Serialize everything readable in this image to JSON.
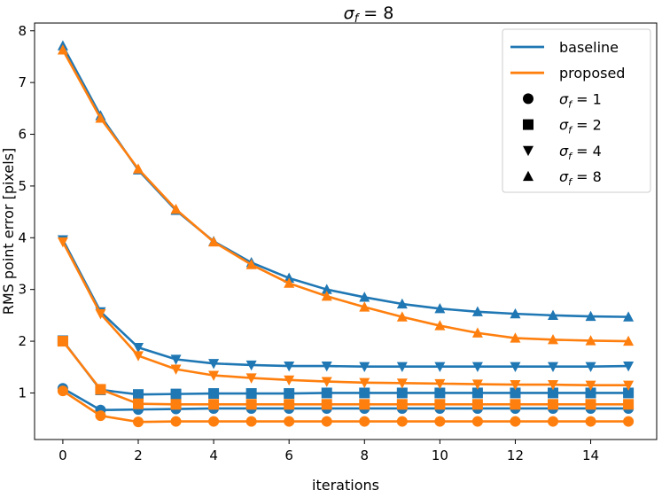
{
  "chart_data": {
    "type": "line",
    "title": "σ_f = 8",
    "xlabel": "iterations",
    "ylabel": "RMS point error [pixels]",
    "xlim": [
      -0.75,
      15.75
    ],
    "ylim": [
      0.1,
      8.15
    ],
    "xticks": [
      0,
      2,
      4,
      6,
      8,
      10,
      12,
      14
    ],
    "yticks": [
      1,
      2,
      3,
      4,
      5,
      6,
      7,
      8
    ],
    "x": [
      0,
      1,
      2,
      3,
      4,
      5,
      6,
      7,
      8,
      9,
      10,
      11,
      12,
      13,
      14,
      15
    ],
    "colors": {
      "baseline": "#1f77b4",
      "proposed": "#ff7f0e",
      "legend_marker": "#000000"
    },
    "series": [
      {
        "name": "baseline, σ_f = 1",
        "method": "baseline",
        "marker": "circle",
        "values": [
          1.09,
          0.67,
          0.68,
          0.69,
          0.7,
          0.7,
          0.7,
          0.7,
          0.7,
          0.7,
          0.7,
          0.7,
          0.7,
          0.7,
          0.7,
          0.7
        ]
      },
      {
        "name": "proposed, σ_f = 1",
        "method": "proposed",
        "marker": "circle",
        "values": [
          1.04,
          0.56,
          0.44,
          0.45,
          0.45,
          0.45,
          0.45,
          0.45,
          0.45,
          0.45,
          0.45,
          0.45,
          0.45,
          0.45,
          0.45,
          0.45
        ]
      },
      {
        "name": "baseline, σ_f = 2",
        "method": "baseline",
        "marker": "square",
        "values": [
          2.01,
          1.06,
          0.97,
          0.98,
          0.99,
          0.99,
          0.99,
          1.0,
          1.0,
          1.0,
          1.0,
          1.0,
          1.0,
          1.0,
          1.0,
          1.0
        ]
      },
      {
        "name": "proposed, σ_f = 2",
        "method": "proposed",
        "marker": "square",
        "values": [
          2.0,
          1.07,
          0.79,
          0.78,
          0.78,
          0.78,
          0.78,
          0.78,
          0.78,
          0.78,
          0.78,
          0.78,
          0.78,
          0.78,
          0.78,
          0.78
        ]
      },
      {
        "name": "baseline, σ_f = 4",
        "method": "baseline",
        "marker": "triangle-down",
        "values": [
          3.96,
          2.57,
          1.88,
          1.65,
          1.57,
          1.54,
          1.52,
          1.52,
          1.51,
          1.51,
          1.51,
          1.51,
          1.51,
          1.51,
          1.51,
          1.52
        ]
      },
      {
        "name": "proposed, σ_f = 4",
        "method": "proposed",
        "marker": "triangle-down",
        "values": [
          3.92,
          2.53,
          1.72,
          1.46,
          1.34,
          1.29,
          1.25,
          1.22,
          1.2,
          1.19,
          1.18,
          1.17,
          1.16,
          1.16,
          1.15,
          1.15
        ]
      },
      {
        "name": "baseline, σ_f = 8",
        "method": "baseline",
        "marker": "triangle-up",
        "values": [
          7.71,
          6.36,
          5.31,
          4.53,
          3.93,
          3.52,
          3.22,
          3.0,
          2.85,
          2.72,
          2.63,
          2.57,
          2.53,
          2.5,
          2.48,
          2.47
        ]
      },
      {
        "name": "proposed, σ_f = 8",
        "method": "proposed",
        "marker": "triangle-up",
        "values": [
          7.63,
          6.31,
          5.33,
          4.55,
          3.92,
          3.48,
          3.12,
          2.87,
          2.66,
          2.47,
          2.3,
          2.16,
          2.06,
          2.03,
          2.01,
          2.0
        ]
      }
    ],
    "legend": {
      "placement": "top-right",
      "entries": [
        {
          "label": "baseline",
          "kind": "line",
          "method": "baseline"
        },
        {
          "label": "proposed",
          "kind": "line",
          "method": "proposed"
        },
        {
          "label": "σ_f = 1",
          "kind": "marker",
          "marker": "circle"
        },
        {
          "label": "σ_f = 2",
          "kind": "marker",
          "marker": "square"
        },
        {
          "label": "σ_f = 4",
          "kind": "marker",
          "marker": "triangle-down"
        },
        {
          "label": "σ_f = 8",
          "kind": "marker",
          "marker": "triangle-up"
        }
      ]
    }
  }
}
